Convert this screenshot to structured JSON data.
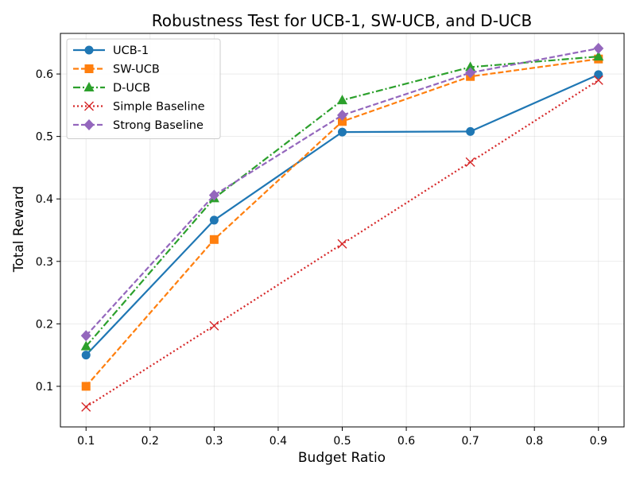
{
  "chart_data": {
    "type": "line",
    "title": "Robustness Test for UCB-1, SW-UCB, and D-UCB",
    "xlabel": "Budget Ratio",
    "ylabel": "Total Reward",
    "xlim": [
      0.06,
      0.94
    ],
    "ylim": [
      0.035,
      0.665
    ],
    "xticks": [
      0.1,
      0.2,
      0.3,
      0.4,
      0.5,
      0.6,
      0.7,
      0.8,
      0.9
    ],
    "xtick_labels": [
      "0.1",
      "0.2",
      "0.3",
      "0.4",
      "0.5",
      "0.6",
      "0.7",
      "0.8",
      "0.9"
    ],
    "yticks": [
      0.1,
      0.2,
      0.3,
      0.4,
      0.5,
      0.6
    ],
    "ytick_labels": [
      "0.1",
      "0.2",
      "0.3",
      "0.4",
      "0.5",
      "0.6"
    ],
    "grid": true,
    "legend_position": "upper-left",
    "x": [
      0.1,
      0.3,
      0.5,
      0.7,
      0.9
    ],
    "series": [
      {
        "name": "UCB-1",
        "values": [
          0.15,
          0.366,
          0.507,
          0.508,
          0.599
        ],
        "color": "#1f77b4",
        "marker": "circle",
        "dash": "solid"
      },
      {
        "name": "SW-UCB",
        "values": [
          0.1,
          0.335,
          0.524,
          0.596,
          0.624
        ],
        "color": "#ff7f0e",
        "marker": "square",
        "dash": "dashed"
      },
      {
        "name": "D-UCB",
        "values": [
          0.164,
          0.401,
          0.558,
          0.611,
          0.628
        ],
        "color": "#2ca02c",
        "marker": "triangle",
        "dash": "dashdot"
      },
      {
        "name": "Simple Baseline",
        "values": [
          0.067,
          0.197,
          0.328,
          0.459,
          0.59
        ],
        "color": "#d62728",
        "marker": "x",
        "dash": "dotted"
      },
      {
        "name": "Strong Baseline",
        "values": [
          0.181,
          0.406,
          0.534,
          0.602,
          0.641
        ],
        "color": "#9467bd",
        "marker": "diamond",
        "dash": "dashed"
      }
    ]
  }
}
